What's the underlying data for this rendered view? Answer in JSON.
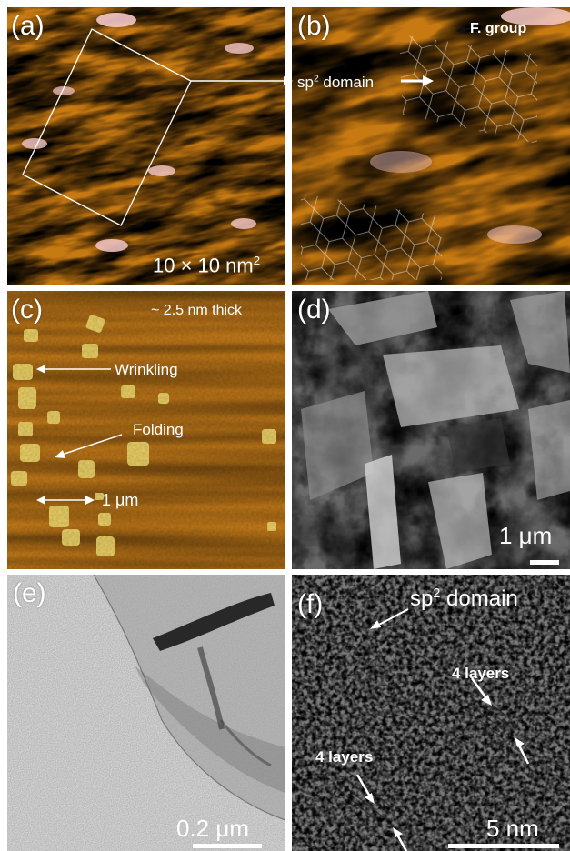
{
  "panels": {
    "a": {
      "label": "(a)",
      "scale_prefix": "10 × 10 nm",
      "scale_sup": "2"
    },
    "b": {
      "label": "(b)",
      "f_group": "F. group",
      "sp2_prefix": "sp",
      "sp2_sup": "2",
      "sp2_suffix": " domain"
    },
    "c": {
      "label": "(c)",
      "thickness": "~ 2.5 nm thick",
      "wrinkling": "Wrinkling",
      "folding": "Folding",
      "scale": "1 μm"
    },
    "d": {
      "label": "(d)",
      "scale": "1 μm"
    },
    "e": {
      "label": "(e)",
      "scale": "0.2 μm"
    },
    "f": {
      "label": "(f)",
      "sp2_prefix": "sp",
      "sp2_sup": "2",
      "sp2_suffix": " domain",
      "layers_1": "4 layers",
      "layers_2": "4 layers",
      "scale": "5 nm"
    }
  },
  "colors": {
    "stm_dark": "#5a0e00",
    "stm_mid": "#c87a12",
    "stm_bright": "#f0ec5a",
    "stm_pink": "#f5c8c8",
    "afm_base": "#c27a1a",
    "sem_base": "#6a6a6a",
    "tem_base": "#d8d8d8",
    "hrtem_base": "#7a7a7a",
    "annotation": "#ffffff"
  }
}
